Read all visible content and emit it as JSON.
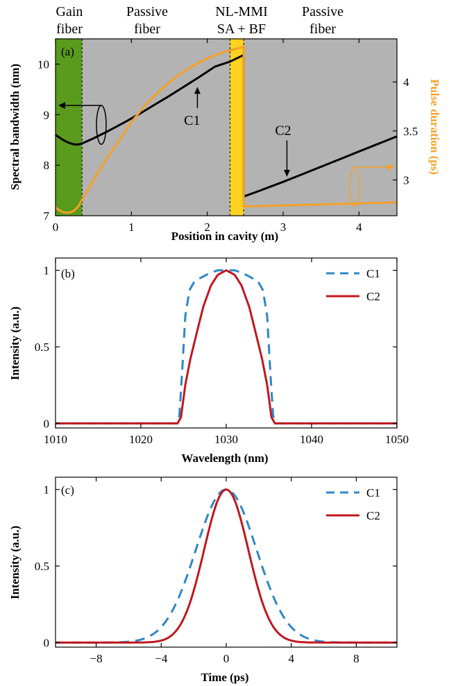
{
  "regions": [
    {
      "line1": "Gain",
      "line2": "fiber",
      "x0": 0,
      "x1": 0.35,
      "color": "#5a9a1c"
    },
    {
      "line1": "Passive",
      "line2": "fiber",
      "x0": 0.35,
      "x1": 2.3,
      "color": "#b3b3b3"
    },
    {
      "line1": "NL-MMI",
      "line2": "SA + BF",
      "x0": 2.3,
      "x1": 2.48,
      "color": "#ffd21f"
    },
    {
      "line1": "Passive",
      "line2": "fiber",
      "x0": 2.48,
      "x1": 4.5,
      "color": "#b3b3b3"
    }
  ],
  "chart_data": [
    {
      "type": "line",
      "panel_label": "(a)",
      "xlabel": "Position in cavity (m)",
      "ylabel": "Spectral bandwidth (nm)",
      "y2label": "Pulse duration (ps)",
      "xlim": [
        0,
        4.5
      ],
      "ylim": [
        7,
        10.5
      ],
      "y2lim": [
        2.635,
        4.44
      ],
      "xticks": [
        "0",
        "1",
        "2",
        "3",
        "4"
      ],
      "yticks": [
        "7",
        "8",
        "9",
        "10"
      ],
      "y2ticks": [
        "3",
        "3.5",
        "4"
      ],
      "annotations": [
        {
          "text": "C1",
          "x": 1.8,
          "y": 8.8,
          "arrow_to": [
            1.87,
            9.55
          ]
        },
        {
          "text": "C2",
          "x": 3.0,
          "y": 8.6,
          "arrow_to": [
            3.05,
            7.77
          ]
        }
      ],
      "series": [
        {
          "axis": "left",
          "color": "#000000",
          "x": [
            0,
            0.05,
            0.1,
            0.15,
            0.2,
            0.25,
            0.3,
            0.35,
            0.5,
            0.7,
            0.9,
            1.1,
            1.3,
            1.5,
            1.7,
            1.9,
            2.1,
            2.3,
            2.48,
            2.48,
            2.7,
            3.0,
            3.3,
            3.6,
            3.9,
            4.2,
            4.5
          ],
          "y": [
            8.6,
            8.55,
            8.5,
            8.46,
            8.43,
            8.41,
            8.41,
            8.43,
            8.53,
            8.68,
            8.84,
            9.01,
            9.19,
            9.37,
            9.56,
            9.75,
            9.95,
            10.05,
            10.18,
            7.38,
            7.5,
            7.67,
            7.85,
            8.03,
            8.21,
            8.39,
            8.57
          ]
        },
        {
          "axis": "right",
          "color": "#f5a128",
          "x": [
            0,
            0.05,
            0.1,
            0.15,
            0.2,
            0.25,
            0.3,
            0.35,
            0.45,
            0.6,
            0.8,
            1.0,
            1.2,
            1.4,
            1.6,
            1.8,
            2.0,
            2.2,
            2.3,
            2.48,
            2.48,
            3.0,
            3.5,
            4.0,
            4.5
          ],
          "y": [
            2.72,
            2.69,
            2.67,
            2.665,
            2.67,
            2.69,
            2.73,
            2.8,
            2.93,
            3.13,
            3.36,
            3.59,
            3.78,
            3.93,
            4.06,
            4.16,
            4.24,
            4.3,
            4.32,
            4.36,
            2.73,
            2.74,
            2.75,
            2.76,
            2.77
          ]
        }
      ]
    },
    {
      "type": "line",
      "panel_label": "(b)",
      "xlabel": "Wavelength (nm)",
      "ylabel": "Intensity (a.u.)",
      "xlim": [
        1010,
        1050
      ],
      "ylim": [
        -0.03,
        1.08
      ],
      "xticks": [
        "1010",
        "1020",
        "1030",
        "1040",
        "1050"
      ],
      "yticks": [
        "0",
        "0.5",
        "1"
      ],
      "legend_position": "top-right",
      "series": [
        {
          "name": "C1",
          "color": "#2f86c6",
          "dash": true,
          "x": [
            1010,
            1024.2,
            1024.5,
            1024.8,
            1025.2,
            1025.7,
            1026.3,
            1027,
            1028,
            1029,
            1030,
            1031,
            1032,
            1033,
            1033.7,
            1034.3,
            1034.8,
            1035.2,
            1035.5,
            1035.8,
            1050
          ],
          "y": [
            0,
            0,
            0.05,
            0.3,
            0.7,
            0.87,
            0.93,
            0.95,
            0.98,
            1.0,
            1.0,
            1.0,
            0.98,
            0.95,
            0.93,
            0.87,
            0.7,
            0.3,
            0.05,
            0,
            0
          ]
        },
        {
          "name": "C2",
          "color": "#c0171f",
          "dash": false,
          "x": [
            1010,
            1024.3,
            1024.7,
            1025.2,
            1025.8,
            1026.5,
            1027.3,
            1028.2,
            1029,
            1030,
            1031,
            1031.8,
            1032.7,
            1033.5,
            1034.2,
            1034.8,
            1035.3,
            1035.7,
            1050
          ],
          "y": [
            0,
            0,
            0.04,
            0.25,
            0.42,
            0.58,
            0.76,
            0.9,
            0.97,
            1.0,
            0.97,
            0.9,
            0.76,
            0.58,
            0.42,
            0.25,
            0.04,
            0,
            0
          ]
        }
      ]
    },
    {
      "type": "line",
      "panel_label": "(c)",
      "xlabel": "Time (ps)",
      "ylabel": "Intensity (a.u.)",
      "xlim": [
        -10.5,
        10.5
      ],
      "ylim": [
        -0.03,
        1.08
      ],
      "xticks": [
        "−8",
        "−4",
        "0",
        "4",
        "8"
      ],
      "yticks": [
        "0",
        "0.5",
        "1"
      ],
      "legend_position": "top-right",
      "series": [
        {
          "name": "C1",
          "color": "#2f86c6",
          "dash": true,
          "gaussian_fwhm": 4.4
        },
        {
          "name": "C2",
          "color": "#c0171f",
          "dash": false,
          "gaussian_fwhm": 3.2
        }
      ]
    }
  ]
}
